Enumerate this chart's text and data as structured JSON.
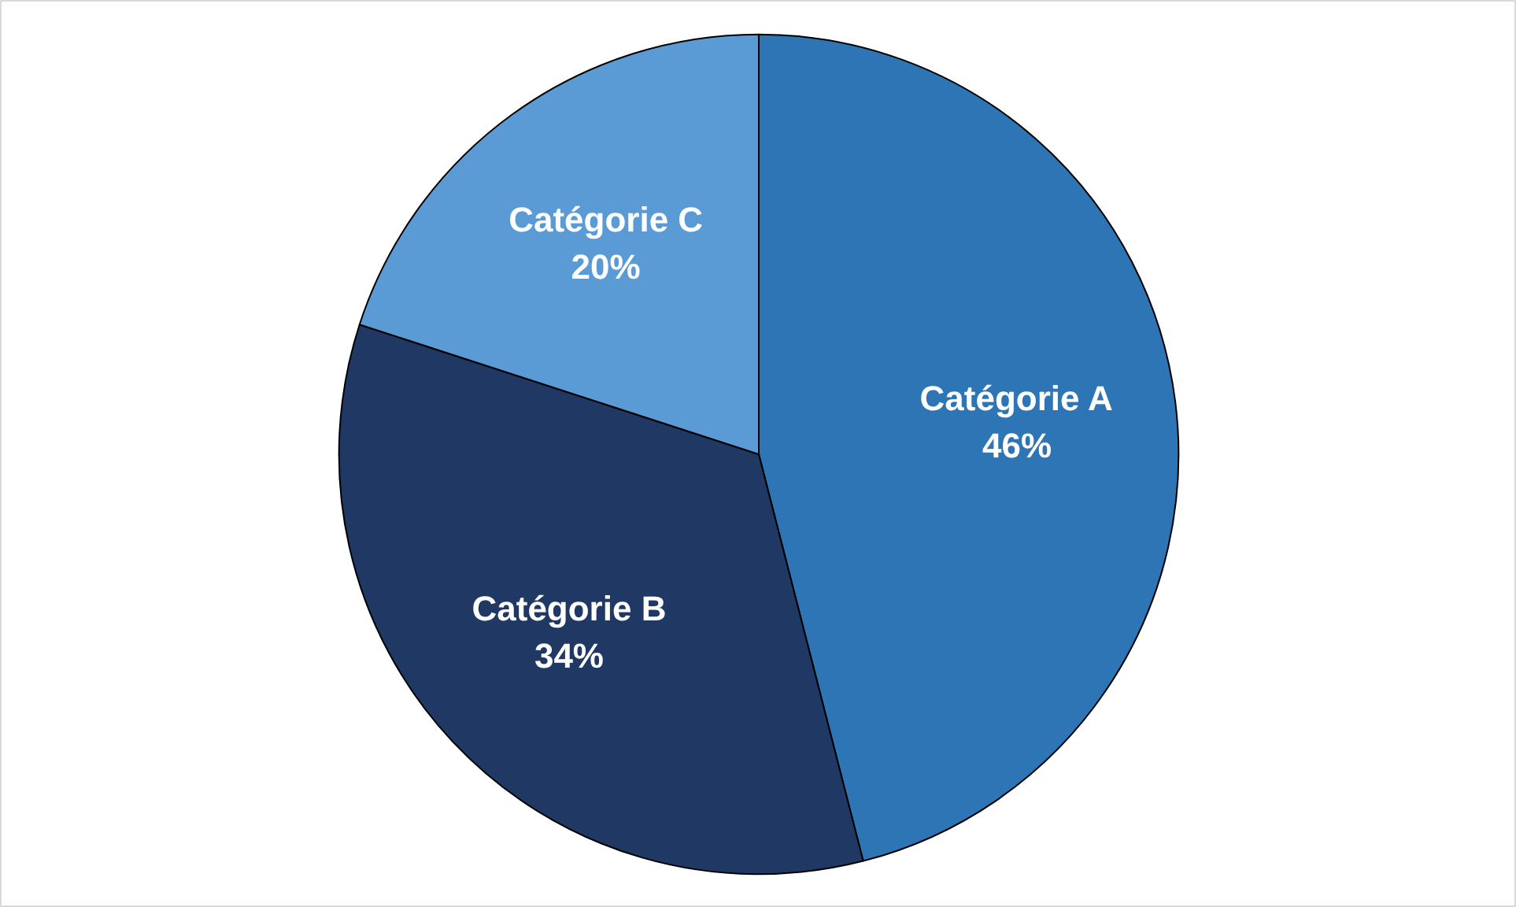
{
  "chart_data": {
    "type": "pie",
    "categories": [
      "Catégorie A",
      "Catégorie B",
      "Catégorie C"
    ],
    "values": [
      46,
      34,
      20
    ],
    "colors": [
      "#2e75b6",
      "#1f3864",
      "#5b9bd5"
    ],
    "value_labels": [
      "46%",
      "34%",
      "20%"
    ]
  }
}
